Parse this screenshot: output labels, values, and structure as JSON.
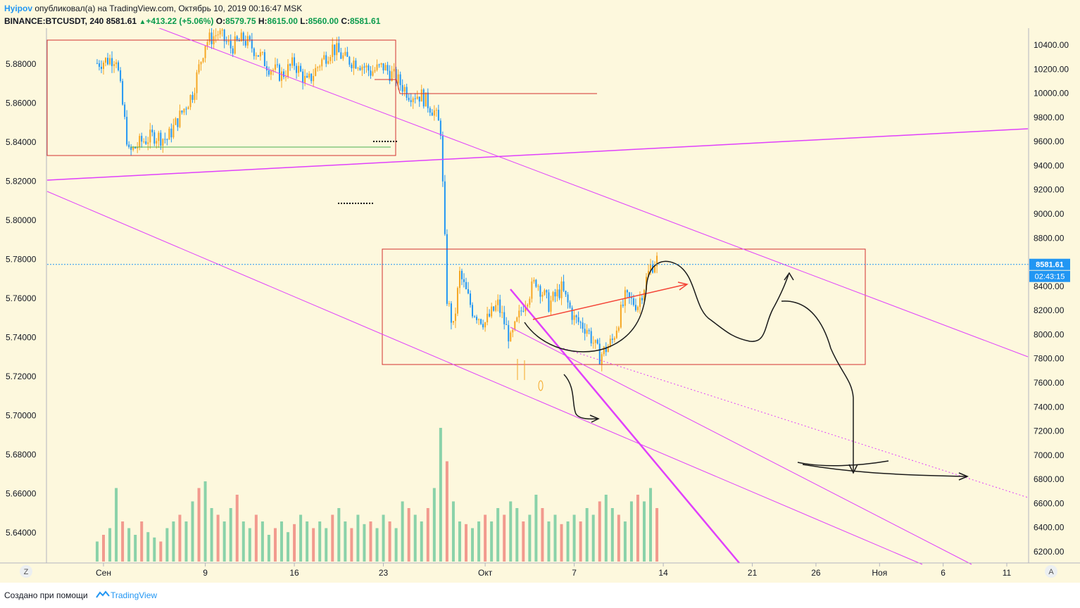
{
  "header": {
    "author": "Hyipov",
    "published_text": " опубликовал(а) на TradingView.com, Октябрь 10, 2019 00:16:47 MSK",
    "symbol": "BINANCE:BTCUSDT, 240",
    "last": "8581.61",
    "change": "+413.22 (+5.06%)",
    "open_label": "O:",
    "open": "8579.75",
    "high_label": "H:",
    "high": "8615.00",
    "low_label": "L:",
    "low": "8560.00",
    "close_label": "C:",
    "close": "8581.61"
  },
  "footer": {
    "made_with": "Создано при помощи",
    "brand": "TradingView"
  },
  "colors": {
    "background": "#fdf8dd",
    "candle_up": "#f5a623",
    "candle_down": "#2196f3",
    "volume_up": "#76cba0",
    "volume_down": "#f08a80",
    "trendline": "#e040fb",
    "box": "#d32f2f",
    "drawing": "#1a1a1a",
    "arrow_red": "#f44336",
    "price_label": "#2196f3"
  },
  "chart_data": {
    "type": "candlestick",
    "symbol": "BINANCE:BTCUSDT",
    "interval": "240",
    "left_axis_ticks": [
      "5.88000",
      "5.86000",
      "5.84000",
      "5.82000",
      "5.80000",
      "5.78000",
      "5.76000",
      "5.74000",
      "5.72000",
      "5.70000",
      "5.68000",
      "5.66000",
      "5.64000"
    ],
    "right_axis_ticks": [
      "10400.00",
      "10200.00",
      "10000.00",
      "9800.00",
      "9600.00",
      "9400.00",
      "9200.00",
      "9000.00",
      "8800.00",
      "8600.00",
      "8400.00",
      "8200.00",
      "8000.00",
      "7800.00",
      "7600.00",
      "7400.00",
      "7200.00",
      "7000.00",
      "6800.00",
      "6600.00",
      "6400.00",
      "6200.00"
    ],
    "x_ticks": [
      "Сен",
      "9",
      "16",
      "23",
      "Окт",
      "7",
      "14",
      "21",
      "26",
      "Ноя",
      "6",
      "11"
    ],
    "x_tick_days": [
      1,
      9,
      16,
      23,
      31,
      38,
      45,
      52,
      57,
      62,
      67,
      72
    ],
    "price_range": [
      6100,
      10600
    ],
    "last_price_label": "8581.61",
    "countdown_label": "02:43:15",
    "last_price": 8581.61,
    "price_series": [
      [
        0.5,
        10250
      ],
      [
        2,
        10300
      ],
      [
        3,
        9500
      ],
      [
        4,
        9600
      ],
      [
        5,
        9650
      ],
      [
        6,
        9620
      ],
      [
        8,
        10000
      ],
      [
        9,
        10420
      ],
      [
        10,
        10500
      ],
      [
        11,
        10380
      ],
      [
        12,
        10450
      ],
      [
        13,
        10350
      ],
      [
        14,
        10220
      ],
      [
        15,
        10150
      ],
      [
        16,
        10250
      ],
      [
        17,
        10080
      ],
      [
        18,
        10250
      ],
      [
        19,
        10380
      ],
      [
        20,
        10280
      ],
      [
        21,
        10260
      ],
      [
        22,
        10180
      ],
      [
        23,
        10220
      ],
      [
        24,
        10120
      ],
      [
        25,
        10000
      ],
      [
        26,
        9980
      ],
      [
        27,
        9850
      ],
      [
        27.5,
        9700
      ],
      [
        28,
        8300
      ],
      [
        28.5,
        8050
      ],
      [
        29,
        8500
      ],
      [
        30,
        8200
      ],
      [
        31,
        8100
      ],
      [
        32,
        8250
      ],
      [
        33,
        7950
      ],
      [
        34,
        8250
      ],
      [
        35,
        8450
      ],
      [
        36,
        8250
      ],
      [
        37,
        8380
      ],
      [
        38,
        8130
      ],
      [
        39,
        8050
      ],
      [
        40,
        7820
      ],
      [
        41,
        7950
      ],
      [
        42,
        8300
      ],
      [
        43,
        8250
      ],
      [
        44,
        8560
      ],
      [
        44.5,
        8620
      ]
    ],
    "volume_range": [
      0,
      1
    ],
    "volumes": [
      [
        0.5,
        0.15
      ],
      [
        1,
        0.2
      ],
      [
        1.5,
        0.25
      ],
      [
        2,
        0.55
      ],
      [
        2.5,
        0.3
      ],
      [
        3,
        0.25
      ],
      [
        3.5,
        0.2
      ],
      [
        4,
        0.3
      ],
      [
        4.5,
        0.22
      ],
      [
        5,
        0.18
      ],
      [
        5.5,
        0.15
      ],
      [
        6,
        0.25
      ],
      [
        6.5,
        0.3
      ],
      [
        7,
        0.35
      ],
      [
        7.5,
        0.3
      ],
      [
        8,
        0.45
      ],
      [
        8.5,
        0.55
      ],
      [
        9,
        0.6
      ],
      [
        9.5,
        0.4
      ],
      [
        10,
        0.35
      ],
      [
        10.5,
        0.3
      ],
      [
        11,
        0.4
      ],
      [
        11.5,
        0.5
      ],
      [
        12,
        0.3
      ],
      [
        12.5,
        0.25
      ],
      [
        13,
        0.35
      ],
      [
        13.5,
        0.3
      ],
      [
        14,
        0.2
      ],
      [
        14.5,
        0.25
      ],
      [
        15,
        0.3
      ],
      [
        15.5,
        0.22
      ],
      [
        16,
        0.28
      ],
      [
        16.5,
        0.35
      ],
      [
        17,
        0.3
      ],
      [
        17.5,
        0.25
      ],
      [
        18,
        0.3
      ],
      [
        18.5,
        0.25
      ],
      [
        19,
        0.35
      ],
      [
        19.5,
        0.4
      ],
      [
        20,
        0.3
      ],
      [
        20.5,
        0.25
      ],
      [
        21,
        0.35
      ],
      [
        21.5,
        0.28
      ],
      [
        22,
        0.3
      ],
      [
        22.5,
        0.25
      ],
      [
        23,
        0.35
      ],
      [
        23.5,
        0.3
      ],
      [
        24,
        0.25
      ],
      [
        24.5,
        0.45
      ],
      [
        25,
        0.4
      ],
      [
        25.5,
        0.35
      ],
      [
        26,
        0.3
      ],
      [
        26.5,
        0.4
      ],
      [
        27,
        0.55
      ],
      [
        27.5,
        1.0
      ],
      [
        28,
        0.75
      ],
      [
        28.5,
        0.45
      ],
      [
        29,
        0.3
      ],
      [
        29.5,
        0.28
      ],
      [
        30,
        0.25
      ],
      [
        30.5,
        0.3
      ],
      [
        31,
        0.35
      ],
      [
        31.5,
        0.3
      ],
      [
        32,
        0.4
      ],
      [
        32.5,
        0.35
      ],
      [
        33,
        0.45
      ],
      [
        33.5,
        0.4
      ],
      [
        34,
        0.3
      ],
      [
        34.5,
        0.35
      ],
      [
        35,
        0.5
      ],
      [
        35.5,
        0.4
      ],
      [
        36,
        0.3
      ],
      [
        36.5,
        0.35
      ],
      [
        37,
        0.28
      ],
      [
        37.5,
        0.3
      ],
      [
        38,
        0.35
      ],
      [
        38.5,
        0.3
      ],
      [
        39,
        0.4
      ],
      [
        39.5,
        0.35
      ],
      [
        40,
        0.45
      ],
      [
        40.5,
        0.5
      ],
      [
        41,
        0.4
      ],
      [
        41.5,
        0.35
      ],
      [
        42,
        0.3
      ],
      [
        42.5,
        0.45
      ],
      [
        43,
        0.5
      ],
      [
        43.5,
        0.45
      ],
      [
        44,
        0.55
      ],
      [
        44.5,
        0.4
      ]
    ],
    "grid": false,
    "legend": "none"
  }
}
